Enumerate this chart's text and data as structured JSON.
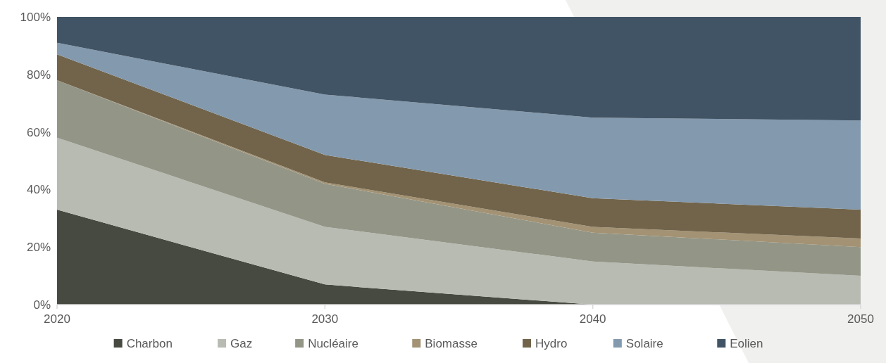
{
  "chart_data": {
    "type": "area",
    "stacked": true,
    "x": [
      2020,
      2030,
      2040,
      2050
    ],
    "xlim": [
      2020,
      2050
    ],
    "xticks": [
      2020,
      2030,
      2040,
      2050
    ],
    "ylim": [
      0,
      100
    ],
    "yticks": [
      {
        "value": 0,
        "label": "0%"
      },
      {
        "value": 20,
        "label": "20%"
      },
      {
        "value": 40,
        "label": "40%"
      },
      {
        "value": 60,
        "label": "60%"
      },
      {
        "value": 80,
        "label": "80%"
      },
      {
        "value": 100,
        "label": "100%"
      }
    ],
    "legend": "bottom",
    "grid": false,
    "series": [
      {
        "name": "Charbon",
        "color": "#474a41",
        "values": [
          33,
          7,
          0,
          0
        ]
      },
      {
        "name": "Gaz",
        "color": "#b8bbb2",
        "values": [
          25,
          20,
          15,
          10
        ]
      },
      {
        "name": "Nucléaire",
        "color": "#939687",
        "values": [
          20,
          15,
          10,
          10
        ]
      },
      {
        "name": "Biomasse",
        "color": "#a39273",
        "values": [
          0,
          0.5,
          2,
          3
        ]
      },
      {
        "name": "Hydro",
        "color": "#71644a",
        "values": [
          9,
          9.5,
          10,
          10
        ]
      },
      {
        "name": "Solaire",
        "color": "#8399ae",
        "values": [
          4,
          21,
          28,
          31
        ]
      },
      {
        "name": "Eolien",
        "color": "#415465",
        "values": [
          9,
          27,
          35,
          36
        ]
      }
    ]
  }
}
